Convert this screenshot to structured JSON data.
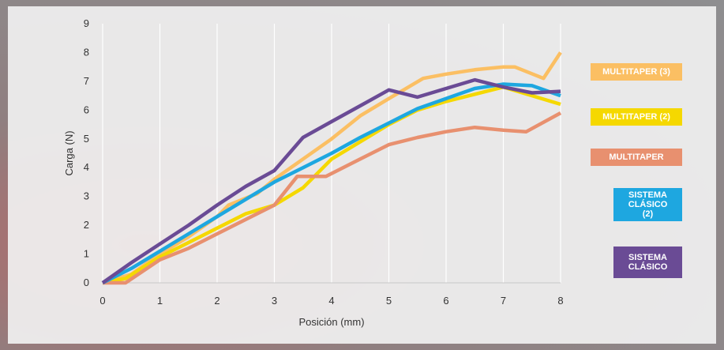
{
  "chart_data": {
    "type": "line",
    "xlabel": "Posición (mm)",
    "ylabel": "Carga (N)",
    "xlim": [
      0,
      8
    ],
    "ylim": [
      0,
      9
    ],
    "xticks": [
      "0",
      "1",
      "2",
      "3",
      "4",
      "5",
      "6",
      "7",
      "8"
    ],
    "yticks": [
      "0",
      "1",
      "2",
      "3",
      "4",
      "5",
      "6",
      "7",
      "8",
      "9"
    ],
    "grid": "vertical",
    "legend_position": "right",
    "series": [
      {
        "name": "MULTITAPER (3)",
        "color": "#fbbf63",
        "x": [
          0,
          0.5,
          1,
          1.5,
          2,
          2.2,
          2.7,
          3,
          3.5,
          4,
          4.5,
          5,
          5.6,
          6,
          6.5,
          7,
          7.2,
          7.7,
          8
        ],
        "y": [
          0,
          0.3,
          1,
          1.6,
          2.3,
          2.7,
          3.1,
          3.6,
          4.3,
          5.0,
          5.8,
          6.4,
          7.1,
          7.25,
          7.4,
          7.5,
          7.5,
          7.1,
          8.0
        ]
      },
      {
        "name": "MULTITAPER (2)",
        "color": "#f5d800",
        "x": [
          0,
          0.4,
          1,
          1.5,
          2,
          2.5,
          3,
          3.5,
          4,
          4.5,
          5,
          5.5,
          6,
          6.5,
          7,
          7.5,
          8
        ],
        "y": [
          0,
          0.15,
          0.9,
          1.4,
          1.9,
          2.4,
          2.7,
          3.3,
          4.3,
          4.9,
          5.5,
          6.0,
          6.3,
          6.55,
          6.8,
          6.5,
          6.2
        ]
      },
      {
        "name": "MULTITAPER",
        "color": "#e8906f",
        "x": [
          0,
          0.4,
          1,
          1.5,
          2,
          2.5,
          3,
          3.4,
          3.9,
          4.5,
          5,
          5.5,
          6,
          6.5,
          7,
          7.4,
          8
        ],
        "y": [
          0,
          0,
          0.8,
          1.2,
          1.7,
          2.2,
          2.7,
          3.7,
          3.7,
          4.3,
          4.8,
          5.05,
          5.25,
          5.4,
          5.3,
          5.25,
          5.9
        ]
      },
      {
        "name": "SISTEMA CLÁSICO (2)",
        "color": "#1ea7e0",
        "x": [
          0,
          0.5,
          1,
          1.5,
          2,
          2.5,
          3,
          3.5,
          4,
          4.5,
          5,
          5.5,
          6,
          6.5,
          7,
          7.5,
          8
        ],
        "y": [
          0,
          0.5,
          1.1,
          1.7,
          2.3,
          2.9,
          3.5,
          4.0,
          4.5,
          5.05,
          5.55,
          6.05,
          6.4,
          6.75,
          6.9,
          6.85,
          6.5
        ]
      },
      {
        "name": "SISTEMA CLÁSICO",
        "color": "#6a4b95",
        "x": [
          0,
          0.5,
          1,
          1.5,
          2,
          2.5,
          3,
          3.5,
          4,
          4.5,
          5,
          5.5,
          6,
          6.5,
          7,
          7.5,
          8
        ],
        "y": [
          0,
          0.7,
          1.35,
          2.0,
          2.7,
          3.35,
          3.9,
          5.05,
          5.6,
          6.15,
          6.7,
          6.45,
          6.75,
          7.05,
          6.8,
          6.6,
          6.65
        ]
      }
    ]
  },
  "legend": [
    {
      "label": "MULTITAPER (3)",
      "color": "#fbbf63"
    },
    {
      "label": "MULTITAPER (2)",
      "color": "#f5d800"
    },
    {
      "label": "MULTITAPER",
      "color": "#e8906f"
    },
    {
      "label": "SISTEMA CLÁSICO (2)",
      "color": "#1ea7e0"
    },
    {
      "label": "SISTEMA CLÁSICO",
      "color": "#6a4b95"
    }
  ]
}
